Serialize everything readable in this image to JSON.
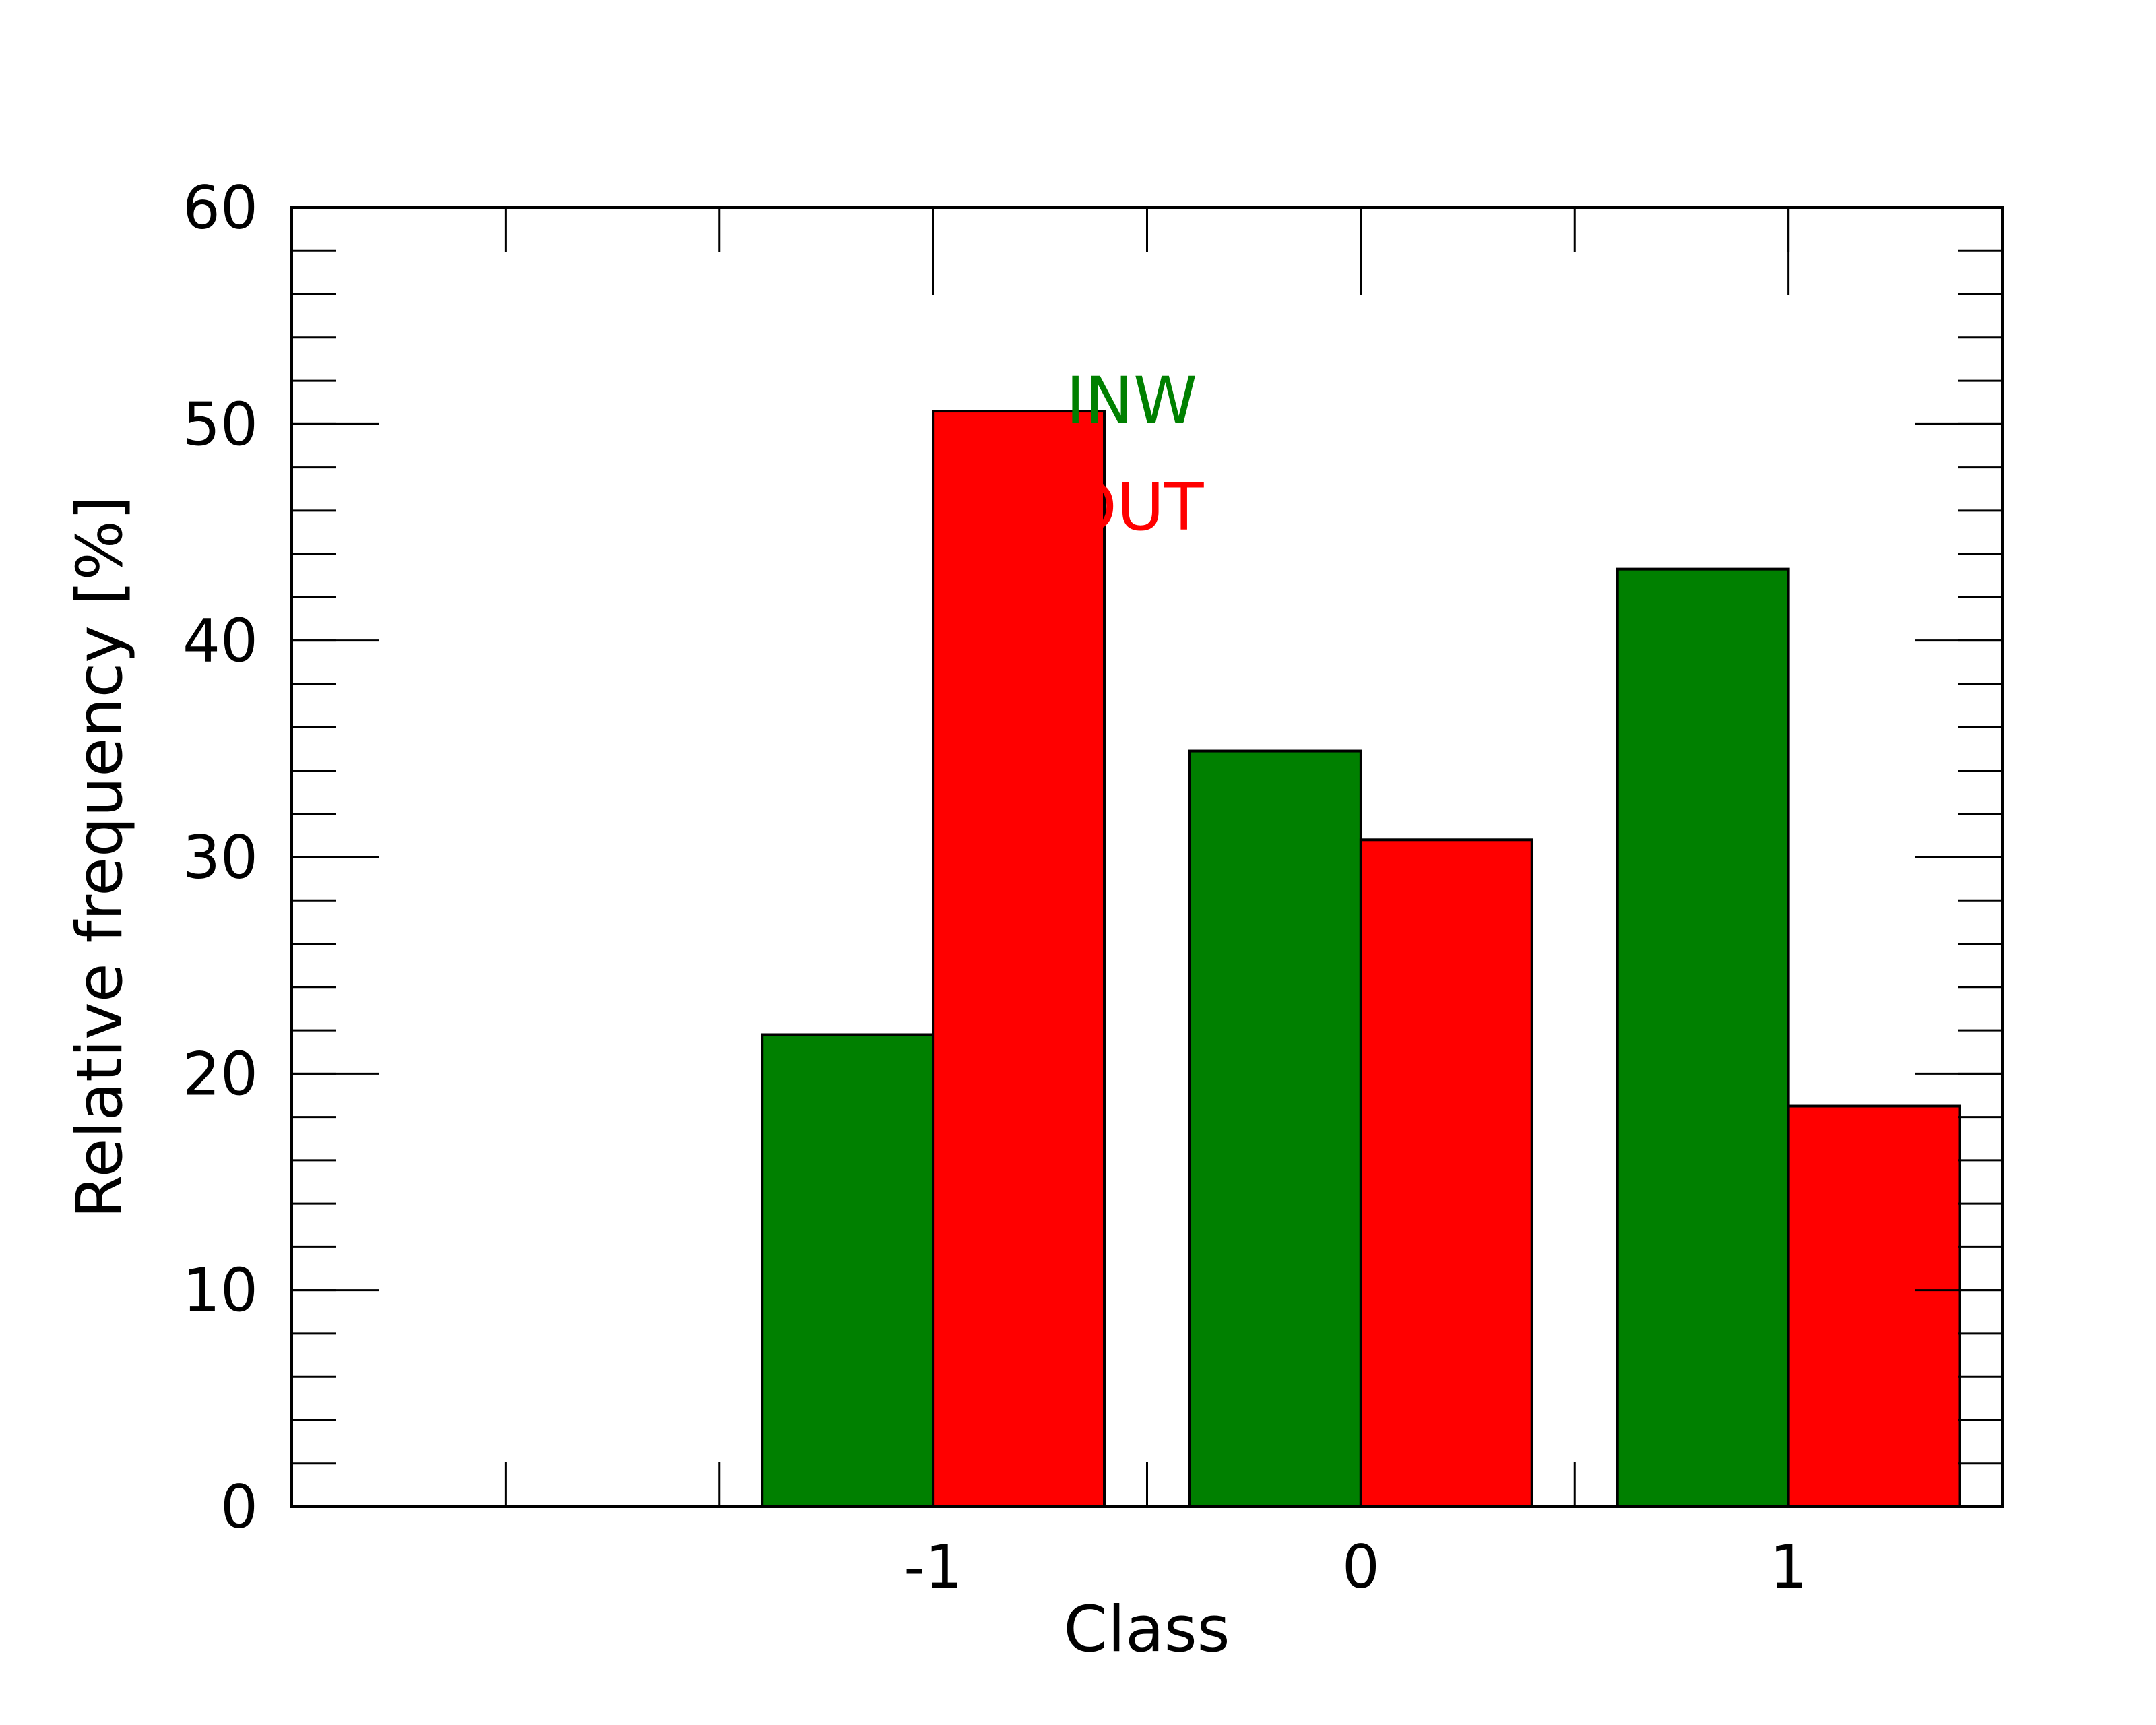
{
  "chart_data": {
    "type": "bar",
    "title": "",
    "xlabel": "Class",
    "ylabel": "Relative frequency [%]",
    "categories": [
      "-1",
      "0",
      "1"
    ],
    "ylim": [
      0,
      60
    ],
    "y_ticks": [
      "0",
      "10",
      "20",
      "30",
      "40",
      "50",
      "60"
    ],
    "y_minor_step": 2,
    "grid": false,
    "legend_position": "top-center",
    "series": [
      {
        "name": "INW",
        "color": "#008000",
        "values": [
          21.8,
          34.9,
          43.3
        ]
      },
      {
        "name": "OUT",
        "color": "#ff0000",
        "values": [
          50.6,
          30.8,
          18.5
        ]
      }
    ]
  }
}
